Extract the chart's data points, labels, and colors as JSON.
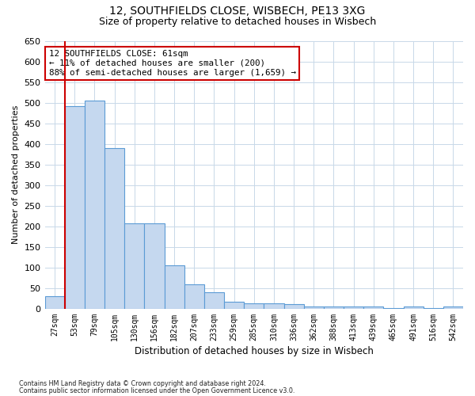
{
  "title1": "12, SOUTHFIELDS CLOSE, WISBECH, PE13 3XG",
  "title2": "Size of property relative to detached houses in Wisbech",
  "xlabel": "Distribution of detached houses by size in Wisbech",
  "ylabel": "Number of detached properties",
  "categories": [
    "27sqm",
    "53sqm",
    "79sqm",
    "105sqm",
    "130sqm",
    "156sqm",
    "182sqm",
    "207sqm",
    "233sqm",
    "259sqm",
    "285sqm",
    "310sqm",
    "336sqm",
    "362sqm",
    "388sqm",
    "413sqm",
    "439sqm",
    "465sqm",
    "491sqm",
    "516sqm",
    "542sqm"
  ],
  "values": [
    30,
    492,
    505,
    390,
    208,
    208,
    105,
    59,
    40,
    18,
    13,
    13,
    11,
    6,
    5,
    5,
    5,
    1,
    5,
    1,
    5
  ],
  "bar_color": "#c5d8ef",
  "bar_edge_color": "#5b9bd5",
  "vline_color": "#cc0000",
  "vline_x_index": 1,
  "ylim": [
    0,
    650
  ],
  "yticks": [
    0,
    50,
    100,
    150,
    200,
    250,
    300,
    350,
    400,
    450,
    500,
    550,
    600,
    650
  ],
  "annotation_text": "12 SOUTHFIELDS CLOSE: 61sqm\n← 11% of detached houses are smaller (200)\n88% of semi-detached houses are larger (1,659) →",
  "annotation_box_color": "#ffffff",
  "annotation_box_edge": "#cc0000",
  "footer1": "Contains HM Land Registry data © Crown copyright and database right 2024.",
  "footer2": "Contains public sector information licensed under the Open Government Licence v3.0.",
  "bg_color": "#ffffff",
  "grid_color": "#c8d8e8"
}
